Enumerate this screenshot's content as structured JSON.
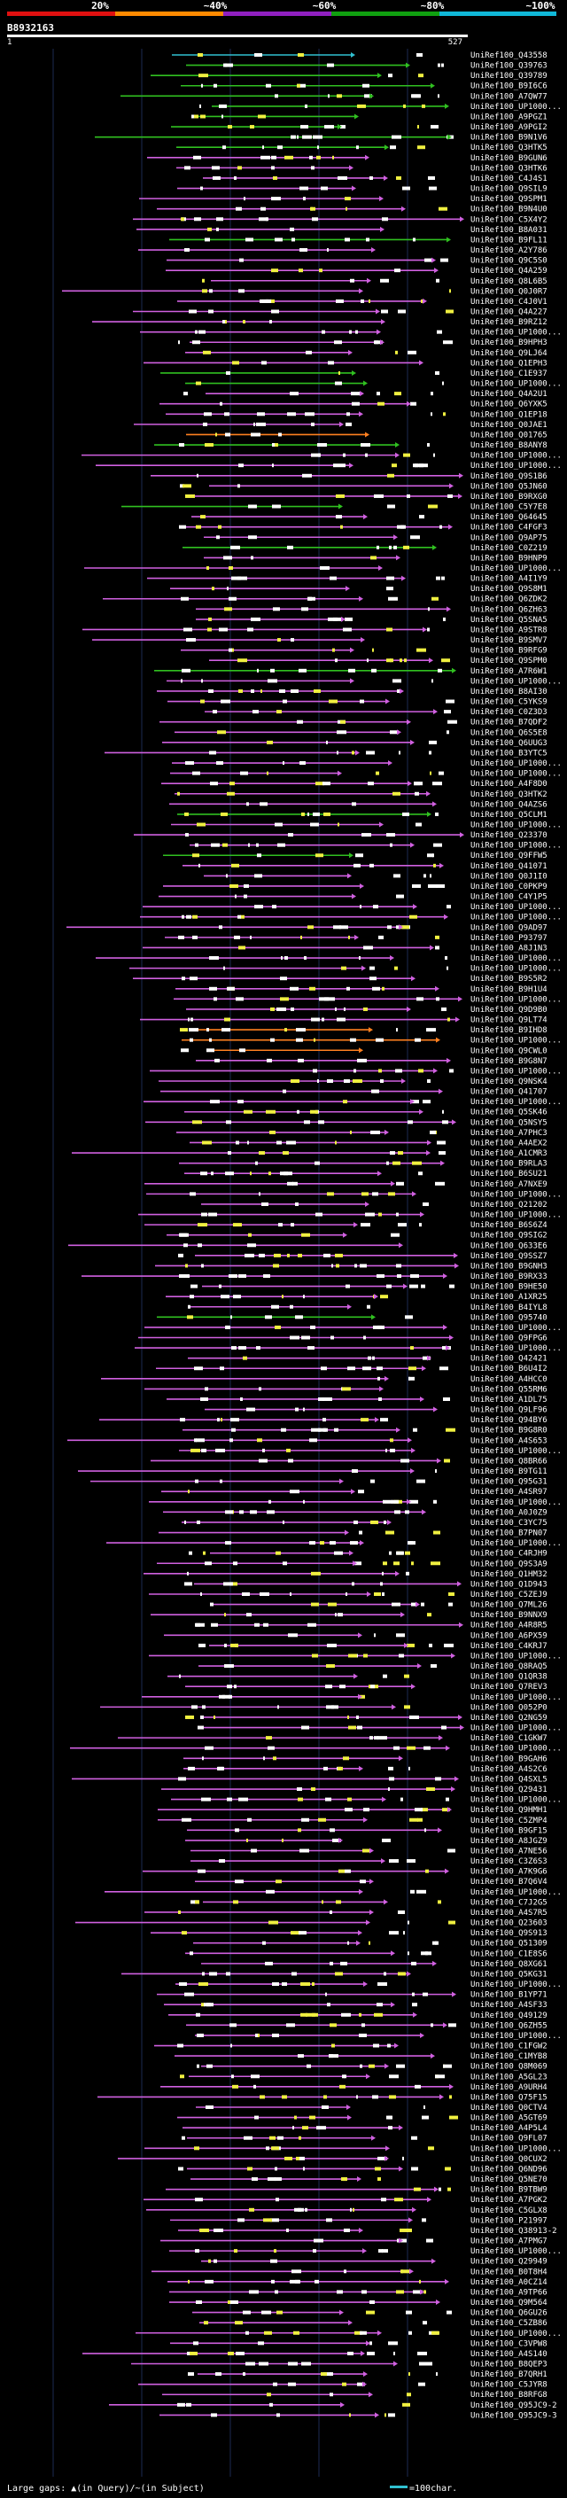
{
  "colors": {
    "background": "#000000",
    "grid": "#1c2a52",
    "magenta": "#d060e0",
    "green": "#30c020",
    "cyan": "#30c0d0",
    "orange": "#ff8020",
    "yellow": "#f0f040",
    "white": "#ffffff",
    "scale_red": "#e01010",
    "scale_orange": "#ff8a00",
    "scale_purple": "#9020c0",
    "scale_green": "#10a010",
    "scale_cyan": "#10b8d8"
  },
  "legend": {
    "scale_labels": [
      "20%",
      "~40%",
      "~60%",
      "~80%",
      "~100%"
    ]
  },
  "query": {
    "id": "B8932163",
    "start_label": "1",
    "end_label": "527"
  },
  "footer": {
    "text": "Large gaps: ▲(in Query)/~(in Subject)",
    "scale_text": "=100char."
  },
  "hits": [
    {
      "label": "UniRef100_Q43558",
      "color": "cyan"
    },
    {
      "label": "UniRef100_Q39763",
      "color": "green"
    },
    {
      "label": "UniRef100_Q39789",
      "color": "green"
    },
    {
      "label": "UniRef100_B9I6C6",
      "color": "green"
    },
    {
      "label": "UniRef100_A7QW77",
      "color": "green"
    },
    {
      "label": "UniRef100_UP1000...",
      "color": "green"
    },
    {
      "label": "UniRef100_A9PGZ1",
      "color": "green"
    },
    {
      "label": "UniRef100_A9PGI2",
      "color": "green"
    },
    {
      "label": "UniRef100_B9N1V6",
      "color": "green"
    },
    {
      "label": "UniRef100_Q3HTK5",
      "color": "green"
    },
    {
      "label": "UniRef100_B9GUN6",
      "color": "magenta"
    },
    {
      "label": "UniRef100_Q3HTK6",
      "color": "magenta"
    },
    {
      "label": "UniRef100_C4J4S1",
      "color": "magenta"
    },
    {
      "label": "UniRef100_Q9SIL9",
      "color": "magenta"
    },
    {
      "label": "UniRef100_Q9SPM1",
      "color": "magenta"
    },
    {
      "label": "UniRef100_B9N4U0",
      "color": "magenta"
    },
    {
      "label": "UniRef100_C5X4Y2",
      "color": "magenta"
    },
    {
      "label": "UniRef100_B8A031",
      "color": "magenta"
    },
    {
      "label": "UniRef100_B9FL11",
      "color": "green"
    },
    {
      "label": "UniRef100_A2Y786",
      "color": "magenta"
    },
    {
      "label": "UniRef100_Q9C5S0",
      "color": "magenta"
    },
    {
      "label": "UniRef100_Q4A259",
      "color": "magenta"
    },
    {
      "label": "UniRef100_Q8L6B5",
      "color": "magenta"
    },
    {
      "label": "UniRef100_Q0J0R7",
      "color": "magenta"
    },
    {
      "label": "UniRef100_C4J0V1",
      "color": "magenta"
    },
    {
      "label": "UniRef100_Q4A227",
      "color": "magenta"
    },
    {
      "label": "UniRef100_B9RZ12",
      "color": "magenta"
    },
    {
      "label": "UniRef100_UP1000...",
      "color": "magenta"
    },
    {
      "label": "UniRef100_B9HPH3",
      "color": "magenta"
    },
    {
      "label": "UniRef100_Q9LJ64",
      "color": "magenta"
    },
    {
      "label": "UniRef100_Q1EPH3",
      "color": "magenta"
    },
    {
      "label": "UniRef100_C1E937",
      "color": "green"
    },
    {
      "label": "UniRef100_UP1000...",
      "color": "green"
    },
    {
      "label": "UniRef100_Q4A2U1",
      "color": "magenta"
    },
    {
      "label": "UniRef100_Q6YXK5",
      "color": "magenta"
    },
    {
      "label": "UniRef100_Q1EP18",
      "color": "magenta"
    },
    {
      "label": "UniRef100_Q0JAE1",
      "color": "magenta"
    },
    {
      "label": "UniRef100_Q01765",
      "color": "orange"
    },
    {
      "label": "UniRef100_B8ANY8",
      "color": "green"
    },
    {
      "label": "UniRef100_UP1000...",
      "color": "magenta"
    },
    {
      "label": "UniRef100_UP1000...",
      "color": "magenta"
    },
    {
      "label": "UniRef100_Q9S1B6",
      "color": "magenta"
    },
    {
      "label": "UniRef100_Q5JN60",
      "color": "magenta"
    },
    {
      "label": "UniRef100_B9RXG0",
      "color": "magenta"
    },
    {
      "label": "UniRef100_C5Y7E8",
      "color": "green"
    },
    {
      "label": "UniRef100_Q64645",
      "color": "magenta"
    },
    {
      "label": "UniRef100_C4FGF3",
      "color": "magenta"
    },
    {
      "label": "UniRef100_Q9AP75",
      "color": "magenta"
    },
    {
      "label": "UniRef100_C0Z219",
      "color": "green"
    },
    {
      "label": "UniRef100_B9HNP9",
      "color": "magenta"
    },
    {
      "label": "UniRef100_UP1000...",
      "color": "magenta"
    },
    {
      "label": "UniRef100_A4I1Y9",
      "color": "magenta"
    },
    {
      "label": "UniRef100_Q9S8M1",
      "color": "magenta"
    },
    {
      "label": "UniRef100_Q6ZDK2",
      "color": "magenta"
    },
    {
      "label": "UniRef100_Q6ZH63",
      "color": "magenta"
    },
    {
      "label": "UniRef100_Q5SNA5",
      "color": "magenta"
    },
    {
      "label": "UniRef100_A9STR8",
      "color": "magenta"
    },
    {
      "label": "UniRef100_B9SMV7",
      "color": "magenta"
    },
    {
      "label": "UniRef100_B9RFG9",
      "color": "magenta"
    },
    {
      "label": "UniRef100_Q9SPM0",
      "color": "magenta"
    },
    {
      "label": "UniRef100_A7R6W1",
      "color": "green"
    },
    {
      "label": "UniRef100_UP1000...",
      "color": "magenta"
    },
    {
      "label": "UniRef100_B8AI30",
      "color": "magenta"
    },
    {
      "label": "UniRef100_C5YKS9",
      "color": "magenta"
    },
    {
      "label": "UniRef100_C0Z3D3",
      "color": "magenta"
    },
    {
      "label": "UniRef100_B7QDF2",
      "color": "magenta"
    },
    {
      "label": "UniRef100_Q6S5E8",
      "color": "magenta"
    },
    {
      "label": "UniRef100_Q6UUG3",
      "color": "magenta"
    },
    {
      "label": "UniRef100_B3YTC5",
      "color": "magenta"
    },
    {
      "label": "UniRef100_UP1000...",
      "color": "magenta"
    },
    {
      "label": "UniRef100_UP1000...",
      "color": "magenta"
    },
    {
      "label": "UniRef100_A4F8D0",
      "color": "magenta"
    },
    {
      "label": "UniRef100_Q3HTK2",
      "color": "magenta"
    },
    {
      "label": "UniRef100_Q4AZS6",
      "color": "magenta"
    },
    {
      "label": "UniRef100_Q5CLM1",
      "color": "green"
    },
    {
      "label": "UniRef100_UP1000...",
      "color": "magenta"
    },
    {
      "label": "UniRef100_Q23370",
      "color": "magenta"
    },
    {
      "label": "UniRef100_UP1000...",
      "color": "magenta"
    },
    {
      "label": "UniRef100_Q9FFW5",
      "color": "green"
    },
    {
      "label": "UniRef100_Q41071",
      "color": "magenta"
    },
    {
      "label": "UniRef100_Q0J1I0",
      "color": "magenta"
    },
    {
      "label": "UniRef100_C0PKP9",
      "color": "magenta"
    },
    {
      "label": "UniRef100_C4Y1P5",
      "color": "magenta"
    },
    {
      "label": "UniRef100_UP1000...",
      "color": "magenta"
    },
    {
      "label": "UniRef100_UP1000...",
      "color": "magenta"
    },
    {
      "label": "UniRef100_Q9AD97",
      "color": "magenta"
    },
    {
      "label": "UniRef100_P93797",
      "color": "magenta"
    },
    {
      "label": "UniRef100_A8J1N3",
      "color": "magenta"
    },
    {
      "label": "UniRef100_UP1000...",
      "color": "magenta"
    },
    {
      "label": "UniRef100_UP1000...",
      "color": "magenta"
    },
    {
      "label": "UniRef100_B9S5R2",
      "color": "magenta"
    },
    {
      "label": "UniRef100_B9H1U4",
      "color": "magenta"
    },
    {
      "label": "UniRef100_UP1000...",
      "color": "magenta"
    },
    {
      "label": "UniRef100_Q9D9B0",
      "color": "magenta"
    },
    {
      "label": "UniRef100_Q9LT74",
      "color": "magenta"
    },
    {
      "label": "UniRef100_B9IHD8",
      "color": "orange"
    },
    {
      "label": "UniRef100_UP1000...",
      "color": "orange"
    },
    {
      "label": "UniRef100_Q9CWL0",
      "color": "orange"
    },
    {
      "label": "UniRef100_B9G8N7",
      "color": "magenta"
    },
    {
      "label": "UniRef100_UP1000...",
      "color": "magenta"
    },
    {
      "label": "UniRef100_Q9NSK4",
      "color": "magenta"
    },
    {
      "label": "UniRef100_Q41707",
      "color": "magenta"
    },
    {
      "label": "UniRef100_UP1000...",
      "color": "magenta"
    },
    {
      "label": "UniRef100_Q5SK46",
      "color": "magenta"
    },
    {
      "label": "UniRef100_Q5NSY5",
      "color": "magenta"
    },
    {
      "label": "UniRef100_A7PHC3",
      "color": "magenta"
    },
    {
      "label": "UniRef100_A4AEX2",
      "color": "magenta"
    },
    {
      "label": "UniRef100_A1CMR3",
      "color": "magenta"
    },
    {
      "label": "UniRef100_B9RLA3",
      "color": "magenta"
    },
    {
      "label": "UniRef100_B6SU21",
      "color": "magenta"
    },
    {
      "label": "UniRef100_A7NXE9",
      "color": "magenta"
    },
    {
      "label": "UniRef100_UP1000...",
      "color": "magenta"
    },
    {
      "label": "UniRef100_Q21202",
      "color": "magenta"
    },
    {
      "label": "UniRef100_UP1000...",
      "color": "magenta"
    },
    {
      "label": "UniRef100_B6S6Z4",
      "color": "magenta"
    },
    {
      "label": "UniRef100_Q9SIG2",
      "color": "magenta"
    },
    {
      "label": "UniRef100_Q633E6",
      "color": "magenta"
    },
    {
      "label": "UniRef100_Q9SSZ7",
      "color": "magenta"
    },
    {
      "label": "UniRef100_B9GNH3",
      "color": "magenta"
    },
    {
      "label": "UniRef100_B9RX33",
      "color": "magenta"
    },
    {
      "label": "UniRef100_B9HE50",
      "color": "magenta"
    },
    {
      "label": "UniRef100_A1XR25",
      "color": "magenta"
    },
    {
      "label": "UniRef100_B4IYL8",
      "color": "magenta"
    },
    {
      "label": "UniRef100_Q95740",
      "color": "green"
    },
    {
      "label": "UniRef100_UP1000...",
      "color": "magenta"
    },
    {
      "label": "UniRef100_Q9FPG6",
      "color": "magenta"
    },
    {
      "label": "UniRef100_UP1000...",
      "color": "magenta"
    },
    {
      "label": "UniRef100_Q42421",
      "color": "magenta"
    },
    {
      "label": "UniRef100_B6U4I2",
      "color": "magenta"
    },
    {
      "label": "UniRef100_A4HCC0",
      "color": "magenta"
    },
    {
      "label": "UniRef100_Q55RM6",
      "color": "magenta"
    },
    {
      "label": "UniRef100_A1DL75",
      "color": "magenta"
    },
    {
      "label": "UniRef100_Q9LF96",
      "color": "magenta"
    },
    {
      "label": "UniRef100_Q94BY6",
      "color": "magenta"
    },
    {
      "label": "UniRef100_B9G8R0",
      "color": "magenta"
    },
    {
      "label": "UniRef100_A4S653",
      "color": "magenta"
    },
    {
      "label": "UniRef100_UP1000...",
      "color": "magenta"
    },
    {
      "label": "UniRef100_Q8BR66",
      "color": "magenta"
    },
    {
      "label": "UniRef100_B9TG11",
      "color": "magenta"
    },
    {
      "label": "UniRef100_Q95G31",
      "color": "magenta"
    },
    {
      "label": "UniRef100_A4SR97",
      "color": "magenta"
    },
    {
      "label": "UniRef100_UP1000...",
      "color": "magenta"
    },
    {
      "label": "UniRef100_A0J0Z9",
      "color": "magenta"
    },
    {
      "label": "UniRef100_C3YC75",
      "color": "magenta"
    },
    {
      "label": "UniRef100_B7PN07",
      "color": "magenta"
    },
    {
      "label": "UniRef100_UP1000...",
      "color": "magenta"
    },
    {
      "label": "UniRef100_C4RJH9",
      "color": "magenta"
    },
    {
      "label": "UniRef100_Q9S3A9",
      "color": "magenta"
    },
    {
      "label": "UniRef100_Q1HM32",
      "color": "magenta"
    },
    {
      "label": "UniRef100_Q1D943",
      "color": "magenta"
    },
    {
      "label": "UniRef100_C5ZEJ9",
      "color": "magenta"
    },
    {
      "label": "UniRef100_Q7ML26",
      "color": "magenta"
    },
    {
      "label": "UniRef100_B9NNX9",
      "color": "magenta"
    },
    {
      "label": "UniRef100_A4R8R5",
      "color": "magenta"
    },
    {
      "label": "UniRef100_A6PX59",
      "color": "magenta"
    },
    {
      "label": "UniRef100_C4KRJ7",
      "color": "magenta"
    },
    {
      "label": "UniRef100_UP1000...",
      "color": "magenta"
    },
    {
      "label": "UniRef100_Q8RAQ5",
      "color": "magenta"
    },
    {
      "label": "UniRef100_Q1QR38",
      "color": "magenta"
    },
    {
      "label": "UniRef100_Q7REV3",
      "color": "magenta"
    },
    {
      "label": "UniRef100_UP1000...",
      "color": "magenta"
    },
    {
      "label": "UniRef100_Q052P0",
      "color": "magenta"
    },
    {
      "label": "UniRef100_Q2NG59",
      "color": "magenta"
    },
    {
      "label": "UniRef100_UP1000...",
      "color": "magenta"
    },
    {
      "label": "UniRef100_C1GKW7",
      "color": "magenta"
    },
    {
      "label": "UniRef100_UP1000...",
      "color": "magenta"
    },
    {
      "label": "UniRef100_B9GAH6",
      "color": "magenta"
    },
    {
      "label": "UniRef100_A4S2C6",
      "color": "magenta"
    },
    {
      "label": "UniRef100_Q4SXL5",
      "color": "magenta"
    },
    {
      "label": "UniRef100_Q29431",
      "color": "magenta"
    },
    {
      "label": "UniRef100_UP1000...",
      "color": "magenta"
    },
    {
      "label": "UniRef100_Q9HMH1",
      "color": "magenta"
    },
    {
      "label": "UniRef100_C5ZMP4",
      "color": "magenta"
    },
    {
      "label": "UniRef100_B9GF15",
      "color": "magenta"
    },
    {
      "label": "UniRef100_A8JGZ9",
      "color": "magenta"
    },
    {
      "label": "UniRef100_A7NE56",
      "color": "magenta"
    },
    {
      "label": "UniRef100_C3Z6S3",
      "color": "magenta"
    },
    {
      "label": "UniRef100_A7K9G6",
      "color": "magenta"
    },
    {
      "label": "UniRef100_B7Q6V4",
      "color": "magenta"
    },
    {
      "label": "UniRef100_UP1000...",
      "color": "magenta"
    },
    {
      "label": "UniRef100_C7J2G5",
      "color": "magenta"
    },
    {
      "label": "UniRef100_A4S7R5",
      "color": "magenta"
    },
    {
      "label": "UniRef100_Q23603",
      "color": "magenta"
    },
    {
      "label": "UniRef100_Q9S913",
      "color": "magenta"
    },
    {
      "label": "UniRef100_Q51309",
      "color": "magenta"
    },
    {
      "label": "UniRef100_C1E8S6",
      "color": "magenta"
    },
    {
      "label": "UniRef100_Q8XG61",
      "color": "magenta"
    },
    {
      "label": "UniRef100_Q5KG31",
      "color": "magenta"
    },
    {
      "label": "UniRef100_UP1000...",
      "color": "magenta"
    },
    {
      "label": "UniRef100_B1YP71",
      "color": "magenta"
    },
    {
      "label": "UniRef100_A4SF33",
      "color": "magenta"
    },
    {
      "label": "UniRef100_Q49129",
      "color": "magenta"
    },
    {
      "label": "UniRef100_Q6ZH55",
      "color": "magenta"
    },
    {
      "label": "UniRef100_UP1000...",
      "color": "magenta"
    },
    {
      "label": "UniRef100_C1FGW2",
      "color": "magenta"
    },
    {
      "label": "UniRef100_C1MYB8",
      "color": "magenta"
    },
    {
      "label": "UniRef100_Q8M069",
      "color": "magenta"
    },
    {
      "label": "UniRef100_A5GL23",
      "color": "magenta"
    },
    {
      "label": "UniRef100_A9URH4",
      "color": "magenta"
    },
    {
      "label": "UniRef100_Q75F15",
      "color": "magenta"
    },
    {
      "label": "UniRef100_Q0CTV4",
      "color": "magenta"
    },
    {
      "label": "UniRef100_A5GT69",
      "color": "magenta"
    },
    {
      "label": "UniRef100_A4P5L4",
      "color": "magenta"
    },
    {
      "label": "UniRef100_Q9FL07",
      "color": "magenta"
    },
    {
      "label": "UniRef100_UP1000...",
      "color": "magenta"
    },
    {
      "label": "UniRef100_Q0CUX2",
      "color": "magenta"
    },
    {
      "label": "UniRef100_Q6ND96",
      "color": "magenta"
    },
    {
      "label": "UniRef100_Q5NE70",
      "color": "magenta"
    },
    {
      "label": "UniRef100_B9TBW9",
      "color": "magenta"
    },
    {
      "label": "UniRef100_A7PGK2",
      "color": "magenta"
    },
    {
      "label": "UniRef100_C5GLX8",
      "color": "magenta"
    },
    {
      "label": "UniRef100_P21997",
      "color": "magenta"
    },
    {
      "label": "UniRef100_Q38913-2",
      "color": "magenta"
    },
    {
      "label": "UniRef100_A7PMG7",
      "color": "magenta"
    },
    {
      "label": "UniRef100_UP1000...",
      "color": "magenta"
    },
    {
      "label": "UniRef100_Q29949",
      "color": "magenta"
    },
    {
      "label": "UniRef100_B0T8H4",
      "color": "magenta"
    },
    {
      "label": "UniRef100_A0CZ14",
      "color": "magenta"
    },
    {
      "label": "UniRef100_A9TP66",
      "color": "magenta"
    },
    {
      "label": "UniRef100_Q9M564",
      "color": "magenta"
    },
    {
      "label": "UniRef100_Q6GU26",
      "color": "magenta"
    },
    {
      "label": "UniRef100_C5ZB86",
      "color": "magenta"
    },
    {
      "label": "UniRef100_UP1000...",
      "color": "magenta"
    },
    {
      "label": "UniRef100_C3VPW8",
      "color": "magenta"
    },
    {
      "label": "UniRef100_A4S140",
      "color": "magenta"
    },
    {
      "label": "UniRef100_B8QEP3",
      "color": "magenta"
    },
    {
      "label": "UniRef100_B7QRH1",
      "color": "magenta"
    },
    {
      "label": "UniRef100_C5JYR8",
      "color": "magenta"
    },
    {
      "label": "UniRef100_B8RFG8",
      "color": "magenta"
    },
    {
      "label": "UniRef100_Q95JC9-2",
      "color": "magenta"
    },
    {
      "label": "UniRef100_Q95JC9-3",
      "color": "magenta"
    }
  ]
}
